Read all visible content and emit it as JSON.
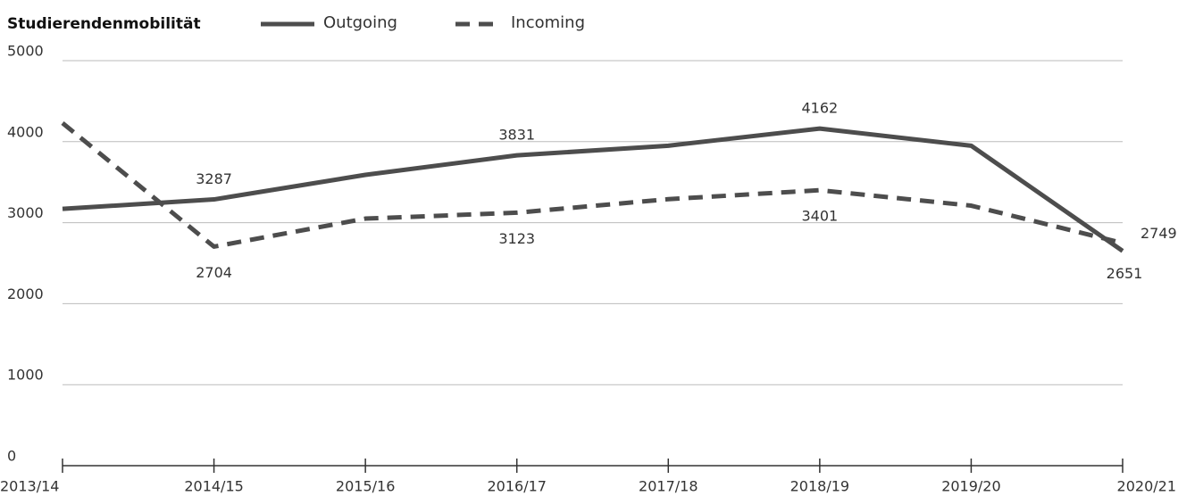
{
  "chart_data": {
    "type": "line",
    "title": "Studierendenmobilität",
    "categories": [
      "2013/14",
      "2014/15",
      "2015/16",
      "2016/17",
      "2017/18",
      "2018/19",
      "2019/20",
      "2020/21"
    ],
    "series": [
      {
        "name": "Outgoing",
        "color": "#4d4d4d",
        "dash": false,
        "values": [
          3170,
          3287,
          3590,
          3831,
          3950,
          4162,
          3950,
          2651
        ],
        "value_labels": [
          null,
          "3287",
          null,
          "3831",
          null,
          "4162",
          null,
          "2651"
        ]
      },
      {
        "name": "Incoming",
        "color": "#4d4d4d",
        "dash": true,
        "values": [
          4230,
          2704,
          3050,
          3123,
          3290,
          3401,
          3210,
          2749
        ],
        "value_labels": [
          null,
          "2704",
          null,
          "3123",
          null,
          "3401",
          null,
          "2749"
        ]
      }
    ],
    "ylim": [
      0,
      5000
    ],
    "yticks": [
      0,
      1000,
      2000,
      3000,
      4000,
      5000
    ],
    "grid": true
  }
}
